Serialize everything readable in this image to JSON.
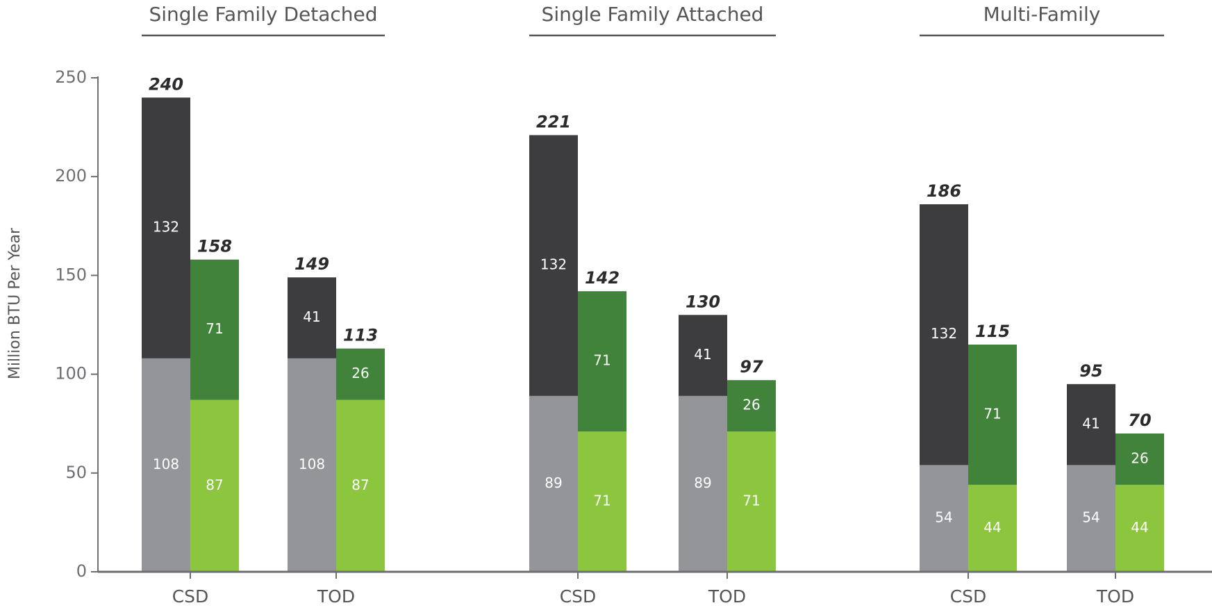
{
  "chart_data": {
    "type": "grouped_stacked_bar",
    "ylabel": "Million BTU Per Year",
    "ylim": [
      0,
      250
    ],
    "yticks": [
      0,
      50,
      100,
      150,
      200,
      250
    ],
    "segment_colors": [
      [
        "#939598",
        "#3d3d3f"
      ],
      [
        "#8cc63f",
        "#41833a"
      ]
    ],
    "groups": [
      {
        "title": "Single Family Detached",
        "clusters": [
          {
            "label": "CSD",
            "bars": [
              {
                "total": 240,
                "segments": [
                  108,
                  132
                ]
              },
              {
                "total": 158,
                "segments": [
                  87,
                  71
                ]
              }
            ]
          },
          {
            "label": "TOD",
            "bars": [
              {
                "total": 149,
                "segments": [
                  108,
                  41
                ]
              },
              {
                "total": 113,
                "segments": [
                  87,
                  26
                ]
              }
            ]
          }
        ]
      },
      {
        "title": "Single Family Attached",
        "clusters": [
          {
            "label": "CSD",
            "bars": [
              {
                "total": 221,
                "segments": [
                  89,
                  132
                ]
              },
              {
                "total": 142,
                "segments": [
                  71,
                  71
                ]
              }
            ]
          },
          {
            "label": "TOD",
            "bars": [
              {
                "total": 130,
                "segments": [
                  89,
                  41
                ]
              },
              {
                "total": 97,
                "segments": [
                  71,
                  26
                ]
              }
            ]
          }
        ]
      },
      {
        "title": "Multi-Family",
        "clusters": [
          {
            "label": "CSD",
            "bars": [
              {
                "total": 186,
                "segments": [
                  54,
                  132
                ]
              },
              {
                "total": 115,
                "segments": [
                  44,
                  71
                ]
              }
            ]
          },
          {
            "label": "TOD",
            "bars": [
              {
                "total": 95,
                "segments": [
                  54,
                  41
                ]
              },
              {
                "total": 70,
                "segments": [
                  44,
                  26
                ]
              }
            ]
          }
        ]
      }
    ]
  }
}
